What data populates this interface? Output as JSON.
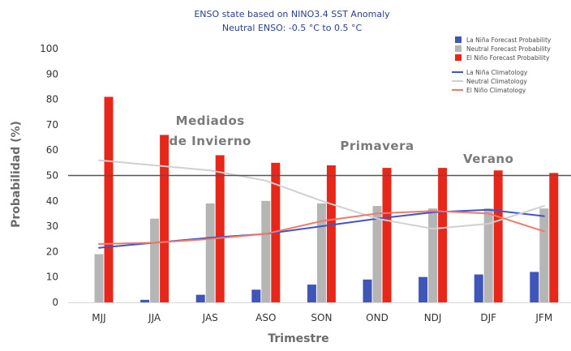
{
  "chart_data": {
    "type": "bar",
    "title": "ENSO state based on NINO3.4 SST Anomaly",
    "subtitle": "Neutral ENSO: -0.5 °C to 0.5 °C",
    "xlabel": "Trimestre",
    "ylabel": "Probabilidad (%)",
    "ylim": [
      0,
      100
    ],
    "yticks": [
      "0",
      "10",
      "20",
      "30",
      "40",
      "50",
      "60",
      "70",
      "80",
      "90",
      "100"
    ],
    "reference_line": 50,
    "grid": false,
    "legend_position": "top-right",
    "categories": [
      "MJJ",
      "JJA",
      "JAS",
      "ASO",
      "SON",
      "OND",
      "NDJ",
      "DJF",
      "JFM"
    ],
    "series": [
      {
        "name": "La Niña Forecast Probability",
        "kind": "bar",
        "color": "#3f55b8",
        "values": [
          0,
          1,
          3,
          5,
          7,
          9,
          10,
          11,
          12
        ]
      },
      {
        "name": "Neutral Forecast Probability",
        "kind": "bar",
        "color": "#b5b5b5",
        "values": [
          19,
          33,
          39,
          40,
          39,
          38,
          37,
          37,
          37
        ]
      },
      {
        "name": "El Niño Forecast Probability",
        "kind": "bar",
        "color": "#e8271b",
        "values": [
          81,
          66,
          58,
          55,
          54,
          53,
          53,
          52,
          51
        ]
      },
      {
        "name": "La Niña Climatology",
        "kind": "line",
        "color": "#3f55c8",
        "values": [
          21.5,
          23.5,
          25.5,
          27,
          30,
          33,
          35.5,
          36.5,
          34
        ]
      },
      {
        "name": "Neutral Climatology",
        "kind": "line",
        "color": "#d0d0d0",
        "values": [
          56,
          54,
          52,
          48,
          40,
          33,
          29,
          31,
          38
        ]
      },
      {
        "name": "El Niño Climatology",
        "kind": "line",
        "color": "#f07a6a",
        "values": [
          23,
          23.5,
          25,
          27,
          32,
          35,
          36,
          35,
          28
        ]
      }
    ],
    "annotations": [
      {
        "text": "Mediados",
        "at_category": "JAS",
        "at_y": 70
      },
      {
        "text": "de Invierno",
        "at_category": "JAS",
        "at_y": 62
      },
      {
        "text": "Primavera",
        "at_category": "OND",
        "at_y": 60
      },
      {
        "text": "Verano",
        "at_category": "DJF",
        "at_y": 55
      }
    ]
  }
}
